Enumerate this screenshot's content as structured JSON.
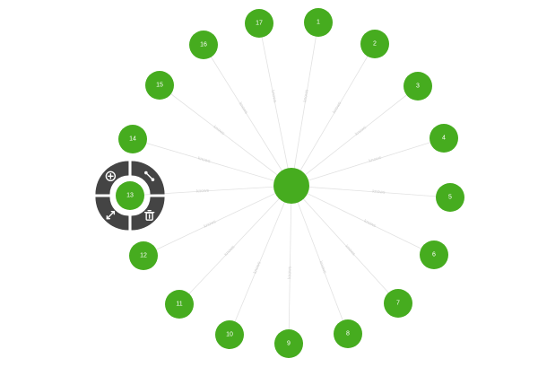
{
  "graph": {
    "colors": {
      "node": "#46ac1f",
      "edge": "#e2e2e2",
      "menu": "#444444",
      "label": "#ffffff"
    },
    "center_node": {
      "id": "center",
      "label": ""
    },
    "nodes": [
      {
        "id": "1",
        "label": "1"
      },
      {
        "id": "2",
        "label": "2"
      },
      {
        "id": "3",
        "label": "3"
      },
      {
        "id": "4",
        "label": "4"
      },
      {
        "id": "5",
        "label": "5"
      },
      {
        "id": "6",
        "label": "6"
      },
      {
        "id": "7",
        "label": "7"
      },
      {
        "id": "8",
        "label": "8"
      },
      {
        "id": "9",
        "label": "9"
      },
      {
        "id": "10",
        "label": "10"
      },
      {
        "id": "11",
        "label": "11"
      },
      {
        "id": "12",
        "label": "12"
      },
      {
        "id": "13",
        "label": "13",
        "selected": true
      },
      {
        "id": "14",
        "label": "14"
      },
      {
        "id": "15",
        "label": "15"
      },
      {
        "id": "16",
        "label": "16"
      },
      {
        "id": "17",
        "label": "17"
      }
    ],
    "edge_label": "knows",
    "context_menu": {
      "target": "13",
      "items": [
        {
          "name": "add-node",
          "icon": "plus-circle-icon"
        },
        {
          "name": "connect-edge",
          "icon": "link-icon"
        },
        {
          "name": "expand",
          "icon": "expand-arrows-icon"
        },
        {
          "name": "delete",
          "icon": "trash-icon"
        }
      ]
    }
  }
}
